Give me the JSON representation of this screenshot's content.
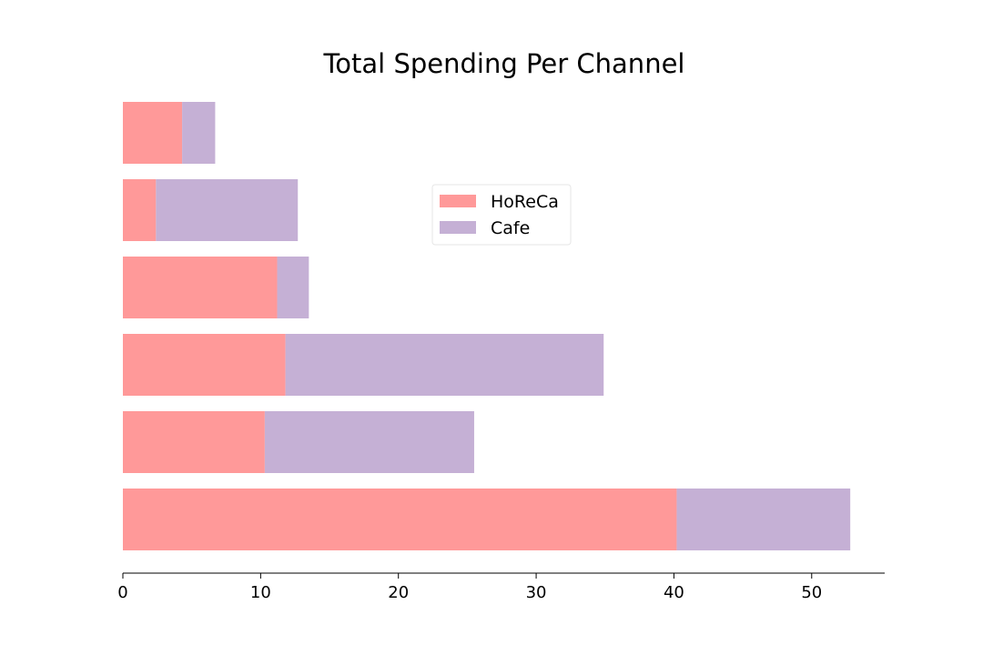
{
  "chart_data": {
    "type": "bar",
    "orientation": "horizontal",
    "stacked": true,
    "title": "Total Spending Per Channel",
    "xlabel": "",
    "ylabel": "",
    "xlim": [
      0,
      55.3
    ],
    "xticks": [
      0,
      10,
      20,
      30,
      40,
      50
    ],
    "categories": [
      "",
      "",
      "",
      "",
      "",
      ""
    ],
    "series": [
      {
        "name": "HoReCa",
        "color": "#ff9999",
        "values": [
          40.2,
          10.3,
          11.8,
          11.2,
          2.4,
          4.3
        ]
      },
      {
        "name": "Cafe",
        "color": "#c5b0d5",
        "values": [
          12.6,
          15.2,
          23.1,
          2.3,
          10.3,
          2.4
        ]
      }
    ],
    "legend_position": "upper-center",
    "grid": false
  }
}
